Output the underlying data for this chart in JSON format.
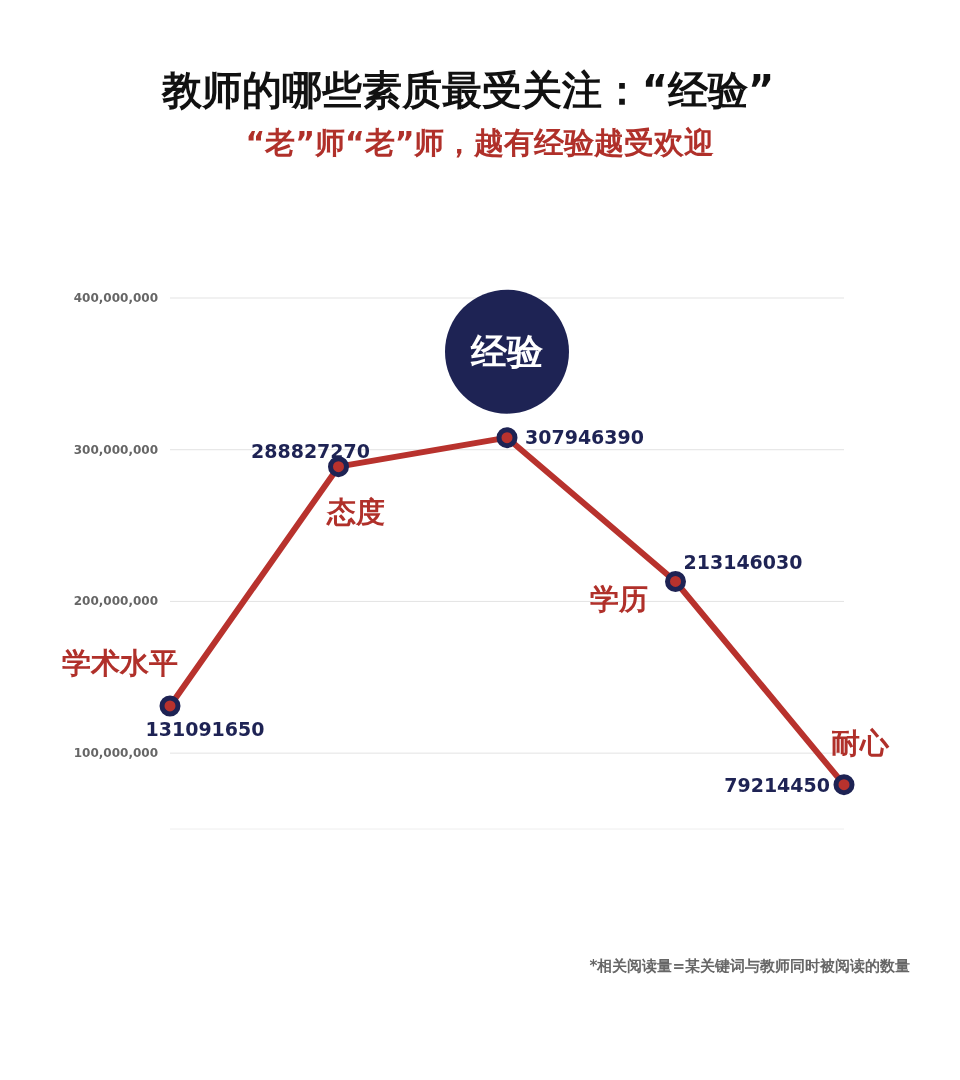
{
  "chart_data": {
    "type": "line",
    "title": "教师的哪些素质最受关注：“经验”",
    "subtitle": "“老”师“老”师，越有经验越受欢迎",
    "categories": [
      "学术水平",
      "态度",
      "经验",
      "学历",
      "耐心"
    ],
    "values": [
      131091650,
      288827270,
      307946390,
      213146030,
      79214450
    ],
    "color": "#b8322d",
    "marker": "circle",
    "line_style": "solid",
    "grid": "y",
    "data_labels": true,
    "ylim": [
      50000000,
      400000000
    ],
    "yticks": [
      {
        "value": 100000000,
        "label": "100,000,000"
      },
      {
        "value": 200000000,
        "label": "200,000,000"
      },
      {
        "value": 300000000,
        "label": "300,000,000"
      },
      {
        "value": 400000000,
        "label": "400,000,000"
      }
    ],
    "annotations": [
      "*相关阅读量=某关键词与教师同时被阅读的数量"
    ]
  }
}
